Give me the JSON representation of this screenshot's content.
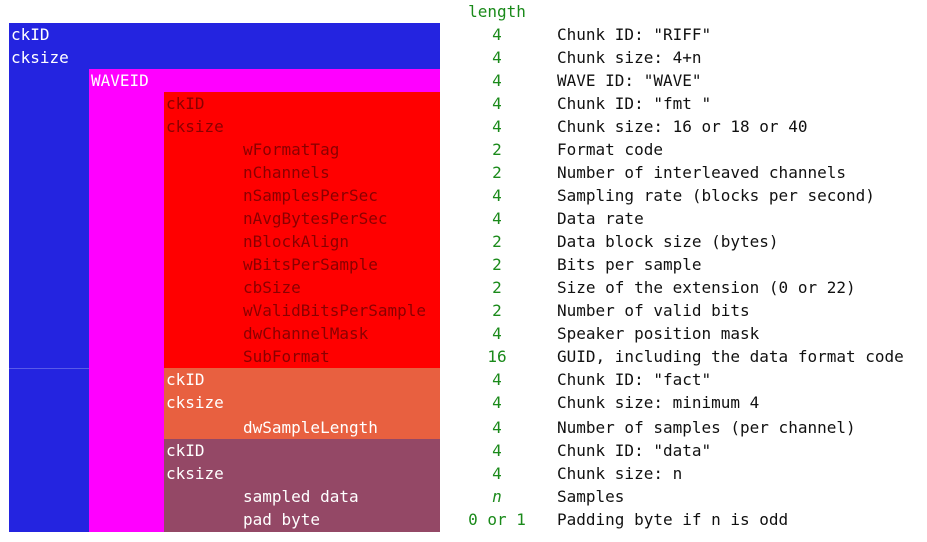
{
  "header": {
    "length": "length"
  },
  "colors": {
    "riff": "#2424e0",
    "wave": "#ff00ff",
    "fmt": "#ff0000",
    "fact": "#e86040",
    "data": "#944866",
    "length_text": "#1a8a1a"
  },
  "rows": [
    {
      "label": "ckID",
      "length": "4",
      "desc": "Chunk ID: \"RIFF\""
    },
    {
      "label": "cksize",
      "length": "4",
      "desc": "Chunk size: 4+n"
    },
    {
      "label": "WAVEID",
      "length": "4",
      "desc": "WAVE ID: \"WAVE\""
    },
    {
      "label": "ckID",
      "length": "4",
      "desc": "Chunk ID: \"fmt \""
    },
    {
      "label": "cksize",
      "length": "4",
      "desc": "Chunk size: 16 or 18 or 40"
    },
    {
      "label": "wFormatTag",
      "length": "2",
      "desc": "Format code"
    },
    {
      "label": "nChannels",
      "length": "2",
      "desc": "Number of interleaved channels"
    },
    {
      "label": "nSamplesPerSec",
      "length": "4",
      "desc": "Sampling rate (blocks per second)"
    },
    {
      "label": "nAvgBytesPerSec",
      "length": "4",
      "desc": "Data rate"
    },
    {
      "label": "nBlockAlign",
      "length": "2",
      "desc": "Data block size (bytes)"
    },
    {
      "label": "wBitsPerSample",
      "length": "2",
      "desc": "Bits per sample"
    },
    {
      "label": "cbSize",
      "length": "2",
      "desc": "Size of the extension (0 or 22)"
    },
    {
      "label": "wValidBitsPerSample",
      "length": "2",
      "desc": "Number of valid bits"
    },
    {
      "label": "dwChannelMask",
      "length": "4",
      "desc": "Speaker position mask"
    },
    {
      "label": "SubFormat",
      "length": "16",
      "desc": "GUID, including the data format code"
    },
    {
      "label": "ckID",
      "length": "4",
      "desc": "Chunk ID: \"fact\""
    },
    {
      "label": "cksize",
      "length": "4",
      "desc": "Chunk size: minimum 4"
    },
    {
      "label": "dwSampleLength",
      "length": "4",
      "desc": "Number of samples (per channel)"
    },
    {
      "label": "ckID",
      "length": "4",
      "desc": "Chunk ID: \"data\""
    },
    {
      "label": "cksize",
      "length": "4",
      "desc": "Chunk size: n"
    },
    {
      "label": "sampled data",
      "length": "n",
      "desc": "Samples"
    },
    {
      "label": "pad byte",
      "length": "0 or 1",
      "desc": "Padding byte if n is odd"
    }
  ]
}
